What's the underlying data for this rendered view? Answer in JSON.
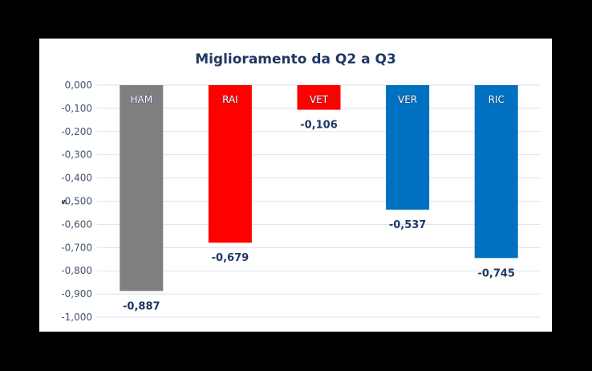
{
  "chart_data": {
    "type": "bar",
    "title": "Miglioramento da Q2 a Q3",
    "xlabel": "",
    "ylabel": "s",
    "ylim": [
      -1.0,
      0.0
    ],
    "y_ticks": [
      "0,000",
      "-0,100",
      "-0,200",
      "-0,300",
      "-0,400",
      "-0,500",
      "-0,600",
      "-0,700",
      "-0,800",
      "-0,900",
      "-1,000"
    ],
    "y_tick_values": [
      0,
      -0.1,
      -0.2,
      -0.3,
      -0.4,
      -0.5,
      -0.6,
      -0.7,
      -0.8,
      -0.9,
      -1.0
    ],
    "grid": true,
    "legend": "none",
    "categories": [
      "HAM",
      "RAI",
      "VET",
      "VER",
      "RIC"
    ],
    "values": [
      -0.887,
      -0.679,
      -0.106,
      -0.537,
      -0.745
    ],
    "value_labels": [
      "-0,887",
      "-0,679",
      "-0,106",
      "-0,537",
      "-0,745"
    ],
    "colors": [
      "#7f7f7f",
      "#ff0000",
      "#ff0000",
      "#0070c0",
      "#0070c0"
    ]
  },
  "colors": {
    "title": "#1f3864",
    "tick_text": "#44546a",
    "value_label": "#1f3864",
    "grid": "#d9e1f2"
  }
}
